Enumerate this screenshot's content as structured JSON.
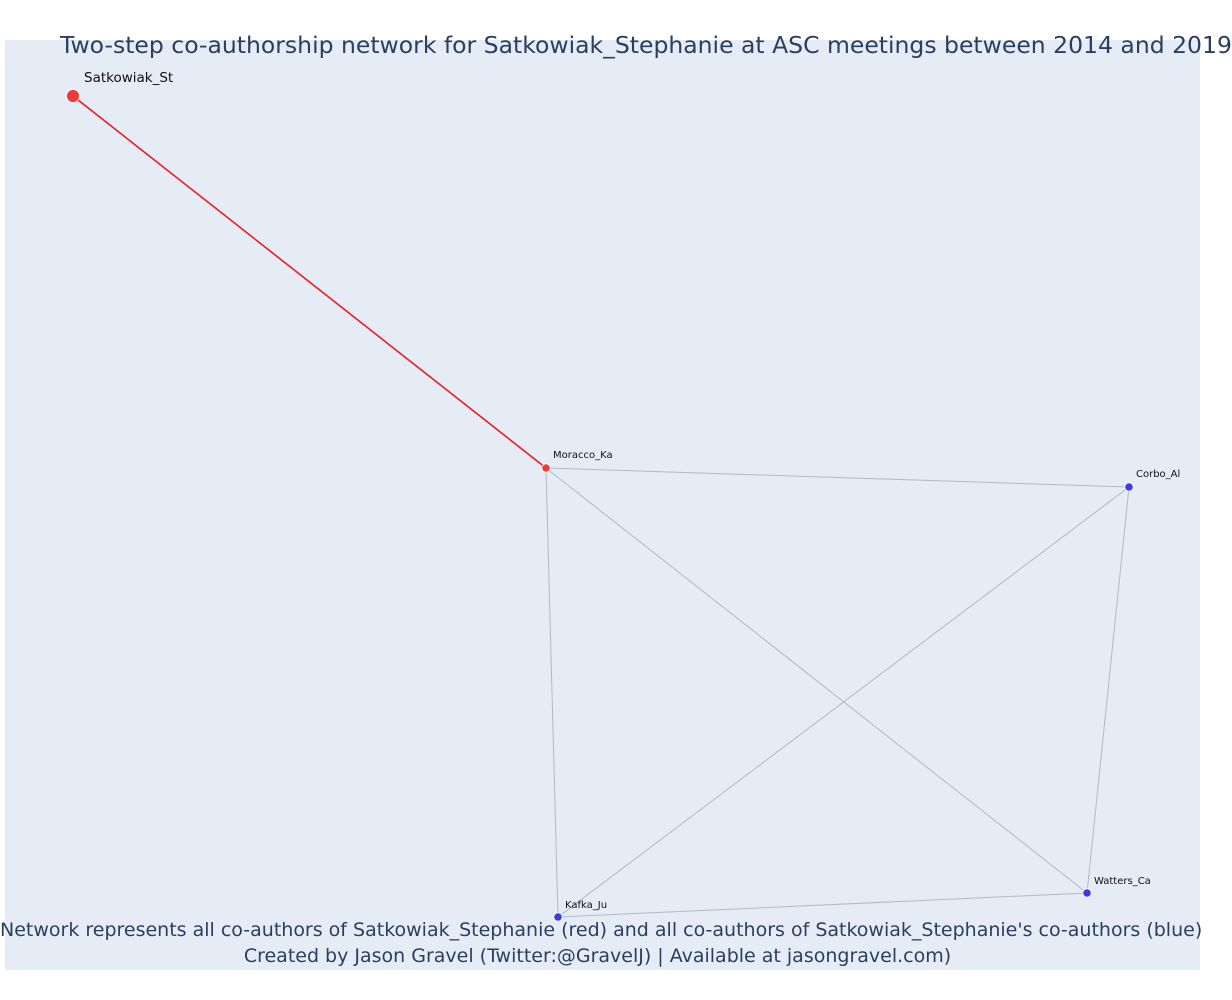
{
  "title": "Two-step co-authorship network for Satkowiak_Stephanie at ASC meetings between 2014 and 2019",
  "caption": {
    "line1": "Network represents all co-authors of Satkowiak_Stephanie (red) and all co-authors of Satkowiak_Stephanie's co-authors (blue)",
    "line2": "Created by Jason Gravel (Twitter:@GravelJ) | Available at jasongravel.com)"
  },
  "colors": {
    "focal": "#ee3a3a",
    "direct_coauthor": "#ee3a3a",
    "second_step": "#3b3be0",
    "focal_edge": "#ee1a1a",
    "other_edge": "#b4b8c6",
    "background": "#e5ecf6",
    "text": "#2a3f5f"
  },
  "network": {
    "nodes": [
      {
        "id": "satkowiak",
        "label": "Satkowiak_St",
        "group": "focal"
      },
      {
        "id": "moracco",
        "label": "Moracco_Ka",
        "group": "direct_coauthor"
      },
      {
        "id": "corbo",
        "label": "Corbo_Al",
        "group": "second_step"
      },
      {
        "id": "kafka",
        "label": "Kafka_Ju",
        "group": "second_step"
      },
      {
        "id": "watters",
        "label": "Watters_Ca",
        "group": "second_step"
      }
    ],
    "edges": [
      {
        "source": "satkowiak",
        "target": "moracco",
        "type": "focal"
      },
      {
        "source": "moracco",
        "target": "corbo",
        "type": "other"
      },
      {
        "source": "moracco",
        "target": "kafka",
        "type": "other"
      },
      {
        "source": "moracco",
        "target": "watters",
        "type": "other"
      },
      {
        "source": "corbo",
        "target": "kafka",
        "type": "other"
      },
      {
        "source": "corbo",
        "target": "watters",
        "type": "other"
      },
      {
        "source": "kafka",
        "target": "watters",
        "type": "other"
      }
    ]
  }
}
